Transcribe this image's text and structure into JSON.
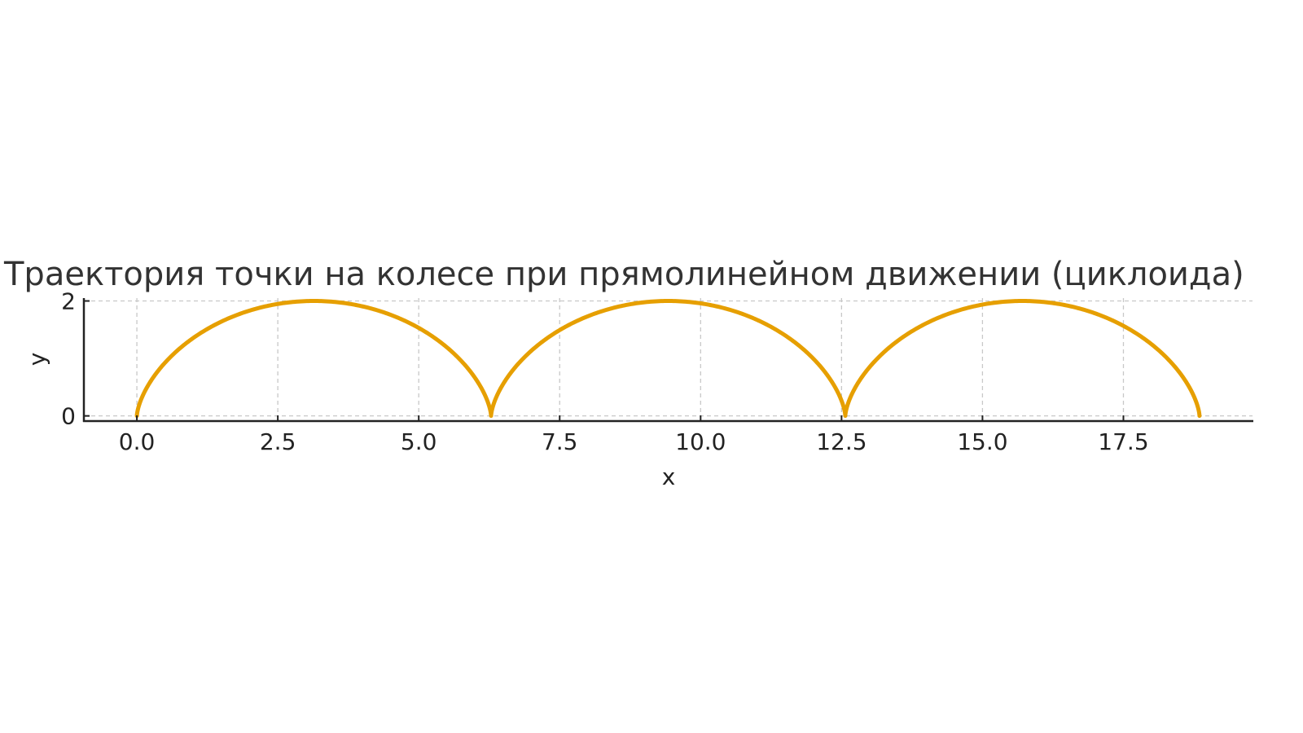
{
  "chart_data": {
    "type": "line",
    "title": "Траектория точки на колесе при прямолинейном движении (циклоида)",
    "xlabel": "x",
    "ylabel": "y",
    "xlim": [
      -0.94,
      19.79
    ],
    "ylim": [
      -0.09,
      2.05
    ],
    "xticks": [
      "0.0",
      "2.5",
      "5.0",
      "7.5",
      "10.0",
      "12.5",
      "15.0",
      "17.5"
    ],
    "xtick_values": [
      0,
      2.5,
      5,
      7.5,
      10,
      12.5,
      15,
      17.5
    ],
    "yticks": [
      "0",
      "2"
    ],
    "ytick_values": [
      0,
      2
    ],
    "grid": true,
    "series": [
      {
        "equation": "x = t - sin t, y = 1 - cos t",
        "t_range": [
          0,
          18.85
        ],
        "color": "#E69F00"
      }
    ]
  }
}
